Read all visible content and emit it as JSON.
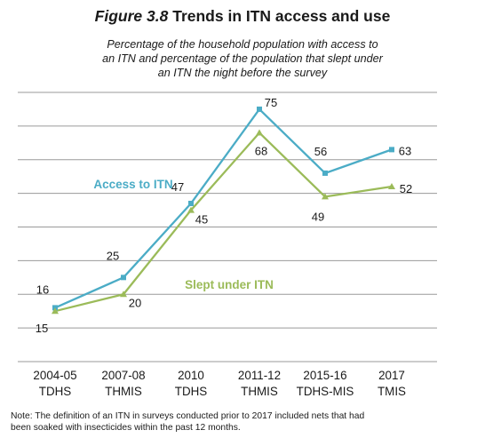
{
  "header": {
    "figure_label": "Figure 3.8",
    "title": "Trends in ITN access and use",
    "subtitle_lines": [
      "Percentage of the household population with access to",
      "an ITN and percentage of the population that slept under",
      "an ITN the night before the survey"
    ]
  },
  "chart_data": {
    "type": "line",
    "title": "Trends in ITN access and use",
    "categories": [
      [
        "2004-05",
        "TDHS"
      ],
      [
        "2007-08",
        "THMIS"
      ],
      [
        "2010",
        "TDHS"
      ],
      [
        "2011-12",
        "THMIS"
      ],
      [
        "2015-16",
        "TDHS-MIS"
      ],
      [
        "2017",
        "TMIS"
      ]
    ],
    "ylim": [
      0,
      80
    ],
    "grid": true,
    "series": [
      {
        "name": "Access to ITN",
        "color": "#4bacc6",
        "values": [
          16,
          25,
          47,
          75,
          56,
          63
        ]
      },
      {
        "name": "Slept under ITN",
        "color": "#9bbb59",
        "values": [
          15,
          20,
          45,
          68,
          49,
          52
        ]
      }
    ]
  },
  "note_lines": [
    "Note: The definition of an ITN in surveys conducted prior to 2017 included nets that had",
    "been soaked with insecticides within the past 12 months."
  ]
}
